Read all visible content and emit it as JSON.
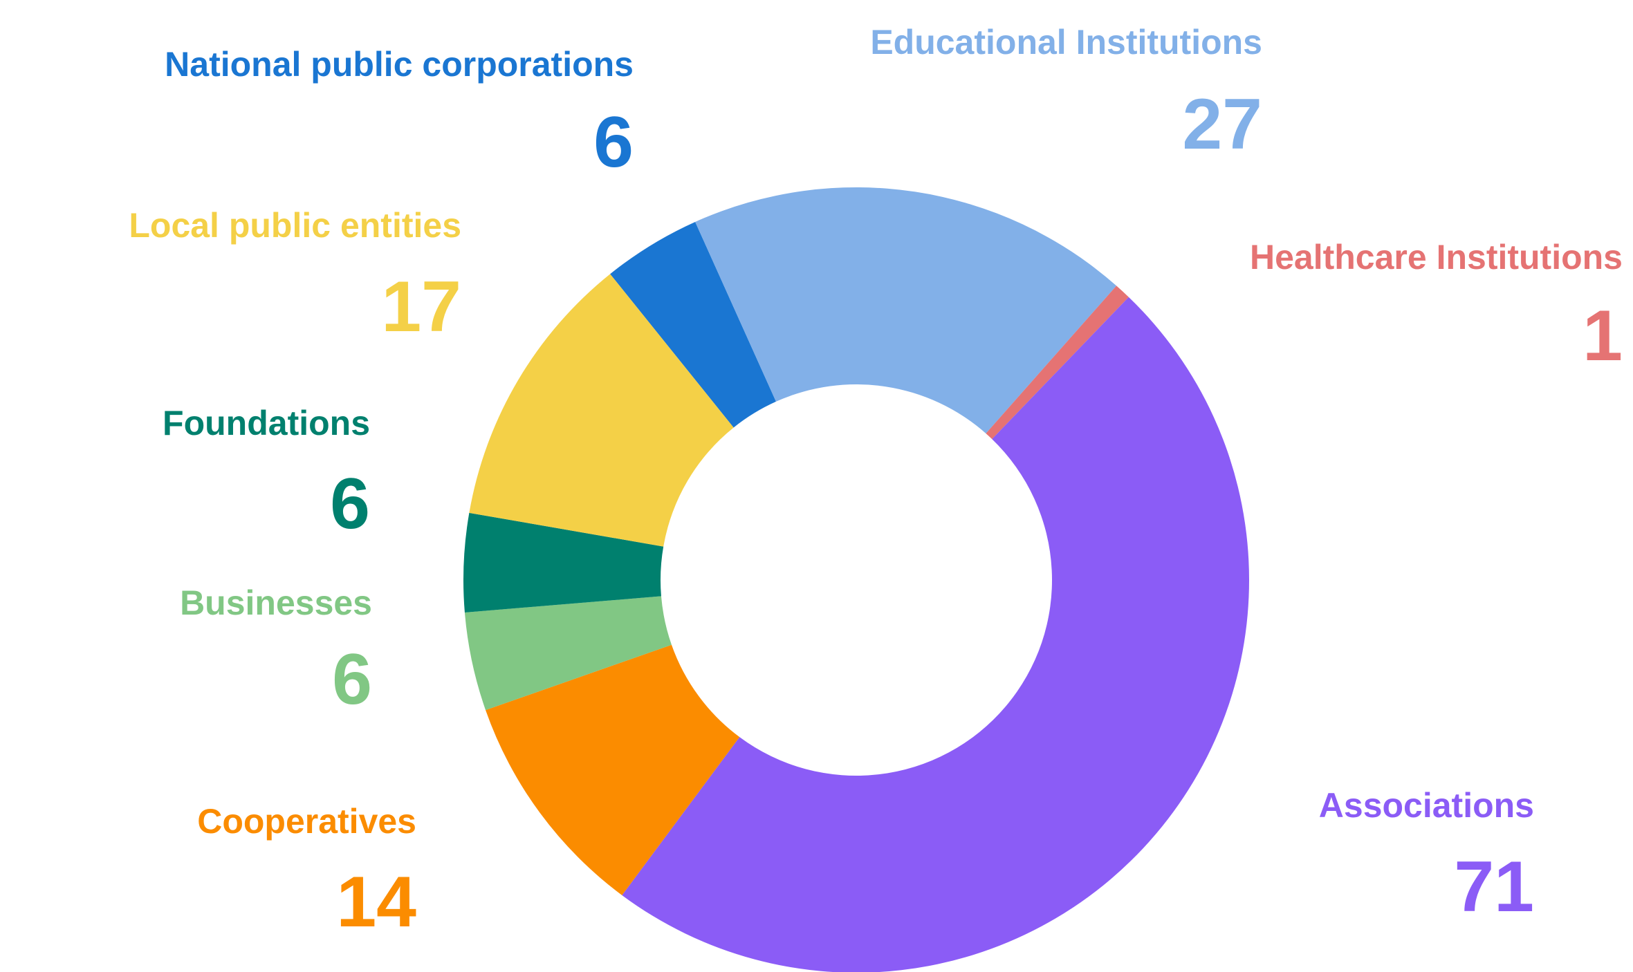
{
  "chart_data": {
    "type": "donut",
    "categories": [
      "National public corporations",
      "Educational Institutions",
      "Healthcare Institutions",
      "Associations",
      "Cooperatives",
      "Businesses",
      "Foundations",
      "Local public entities"
    ],
    "values": [
      6,
      27,
      1,
      71,
      14,
      6,
      6,
      17
    ],
    "colors": [
      "#1a76d2",
      "#82b0e8",
      "#e57373",
      "#8b5cf6",
      "#fb8c00",
      "#81c784",
      "#00806e",
      "#f4d047"
    ]
  }
}
